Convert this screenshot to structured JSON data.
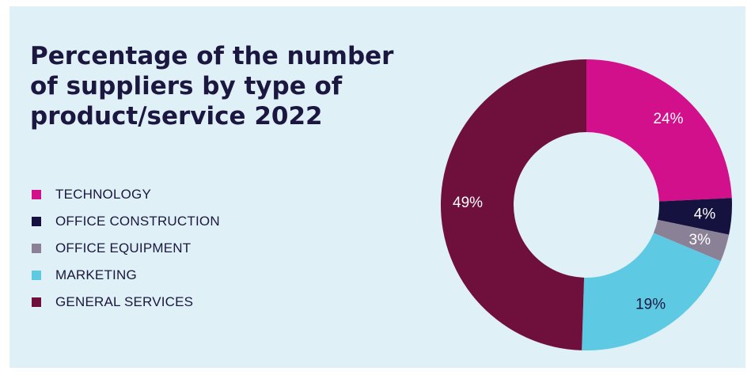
{
  "chart_data": {
    "type": "pie",
    "title_lines": [
      "Percentage of the number",
      "of suppliers by type of",
      "product/service 2022"
    ],
    "categories": [
      "TECHNOLOGY",
      "OFFICE CONSTRUCTION",
      "OFFICE EQUIPMENT",
      "MARKETING",
      "GENERAL SERVICES"
    ],
    "values": [
      24,
      4,
      3,
      19,
      49
    ],
    "labels": [
      "24%",
      "4%",
      "3%",
      "19%",
      "49%"
    ],
    "colors": [
      "#d2108c",
      "#16123f",
      "#8a8196",
      "#5ec9e3",
      "#6e0f3c"
    ],
    "label_colors": [
      "#ffffff",
      "#ffffff",
      "#ffffff",
      "#1b1740",
      "#ffffff"
    ],
    "legend_position": "left",
    "donut": true
  }
}
